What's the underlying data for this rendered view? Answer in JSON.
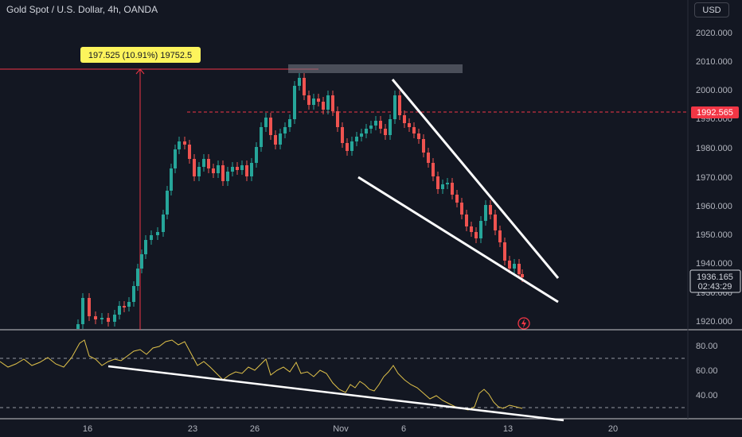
{
  "header": {
    "title": "Gold Spot / U.S. Dollar, 4h, OANDA",
    "currency_button": "USD"
  },
  "price_axis": {
    "ticks": [
      "2020.000",
      "2010.000",
      "2000.000",
      "1990.000",
      "1980.000",
      "1970.000",
      "1960.000",
      "1950.000",
      "1940.000",
      "1930.000",
      "1920.000"
    ],
    "marker_price": "1992.565",
    "last_price": "1936.165",
    "countdown": "02:43:29"
  },
  "measure_label": "197.525 (10.91%) 19752.5",
  "oscillator_axis": {
    "ticks": [
      "80.00",
      "60.00",
      "40.00"
    ]
  },
  "time_axis": {
    "ticks": [
      "16",
      "23",
      "26",
      "Nov",
      "6",
      "13",
      "20"
    ]
  },
  "colors": {
    "up": "#26a69a",
    "down": "#ef5350",
    "background": "#131722",
    "measure": "#f23645",
    "oscillator_line": "#e0c24a",
    "measure_label_bg": "#fdf45c"
  },
  "icons": {
    "replay": "lightning-icon"
  }
}
